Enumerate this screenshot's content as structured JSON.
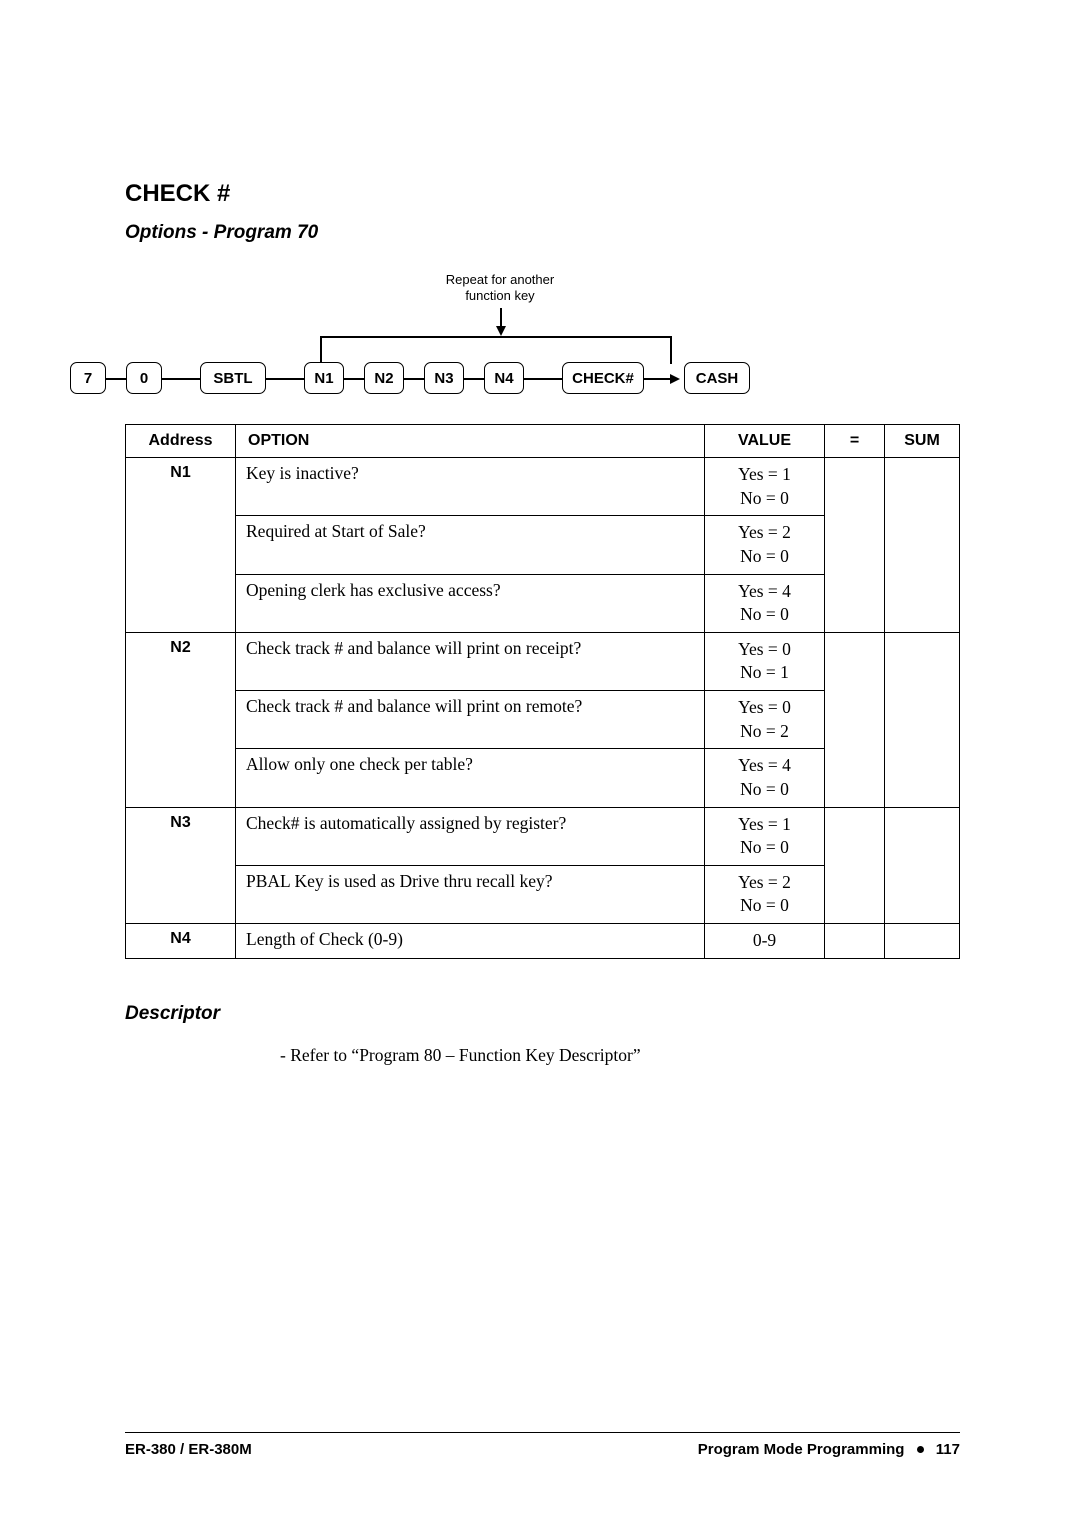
{
  "heading": "CHECK #",
  "subheading": "Options - Program 70",
  "diagram": {
    "repeat_label_line1": "Repeat for another",
    "repeat_label_line2": "function key",
    "boxes": {
      "k7": "7",
      "k0": "0",
      "sbtl": "SBTL",
      "n1": "N1",
      "n2": "N2",
      "n3": "N3",
      "n4": "N4",
      "checknum": "CHECK#",
      "cash": "CASH"
    }
  },
  "table": {
    "headers": {
      "address": "Address",
      "option": "OPTION",
      "value": "VALUE",
      "equals": "=",
      "sum": "SUM"
    },
    "rows": [
      {
        "addr": "N1",
        "option": "Key is inactive?",
        "val1": "Yes = 1",
        "val2": "No = 0",
        "addr_rowspan": 3
      },
      {
        "addr": "",
        "option": "Required at Start of Sale?",
        "val1": "Yes = 2",
        "val2": "No = 0"
      },
      {
        "addr": "",
        "option": "Opening clerk has exclusive access?",
        "val1": "Yes = 4",
        "val2": "No = 0"
      },
      {
        "addr": "N2",
        "option": "Check track # and balance will print on receipt?",
        "val1": "Yes = 0",
        "val2": "No = 1",
        "addr_rowspan": 3
      },
      {
        "addr": "",
        "option": "Check track # and balance will print on remote?",
        "val1": "Yes = 0",
        "val2": "No = 2"
      },
      {
        "addr": "",
        "option": "Allow only one check per table?",
        "val1": "Yes = 4",
        "val2": "No = 0"
      },
      {
        "addr": "N3",
        "option": "Check# is automatically assigned by register?",
        "val1": "Yes = 1",
        "val2": "No = 0",
        "addr_rowspan": 2
      },
      {
        "addr": "",
        "option": "PBAL Key is used as Drive thru recall key?",
        "val1": "Yes = 2",
        "val2": "No = 0"
      },
      {
        "addr": "N4",
        "option": "Length of Check (0-9)",
        "val1": "0-9",
        "val2": "",
        "addr_rowspan": 1
      }
    ],
    "col_widths": {
      "address": "110px",
      "option": "auto",
      "value": "120px",
      "equals": "60px",
      "sum": "75px"
    }
  },
  "descriptor_heading": "Descriptor",
  "descriptor_text": "- Refer to “Program 80 – Function Key Descriptor”",
  "footer": {
    "left": "ER-380 / ER-380M",
    "right_label": "Program Mode Programming",
    "page_num": "117"
  }
}
